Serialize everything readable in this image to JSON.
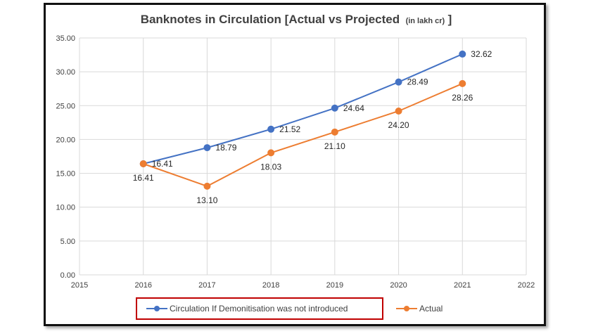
{
  "chart_data": {
    "type": "line",
    "title": "Banknotes in Circulation [Actual vs Projected",
    "title_unit": "(in lakh cr)",
    "title_close": "]",
    "xlim": [
      2015,
      2022
    ],
    "ylim": [
      0,
      35
    ],
    "x_ticks": [
      "2015",
      "2016",
      "2017",
      "2018",
      "2019",
      "2020",
      "2021",
      "2022"
    ],
    "y_ticks": [
      "0.00",
      "5.00",
      "10.00",
      "15.00",
      "20.00",
      "25.00",
      "30.00",
      "35.00"
    ],
    "grid": true,
    "legend_position": "bottom",
    "series": [
      {
        "name": "Circulation If Demonitisation was not introduced",
        "color": "#4472C4",
        "x": [
          2016,
          2017,
          2018,
          2019,
          2020,
          2021
        ],
        "values": [
          16.41,
          18.79,
          21.52,
          24.64,
          28.49,
          32.62
        ],
        "labels": [
          "16.41",
          "18.79",
          "21.52",
          "24.64",
          "28.49",
          "32.62"
        ]
      },
      {
        "name": "Actual",
        "color": "#ED7D31",
        "x": [
          2016,
          2017,
          2018,
          2019,
          2020,
          2021
        ],
        "values": [
          16.41,
          13.1,
          18.03,
          21.1,
          24.2,
          28.26
        ],
        "labels": [
          "16.41",
          "13.10",
          "18.03",
          "21.10",
          "24.20",
          "28.26"
        ]
      }
    ],
    "legend_highlight_color": "#C00000"
  }
}
